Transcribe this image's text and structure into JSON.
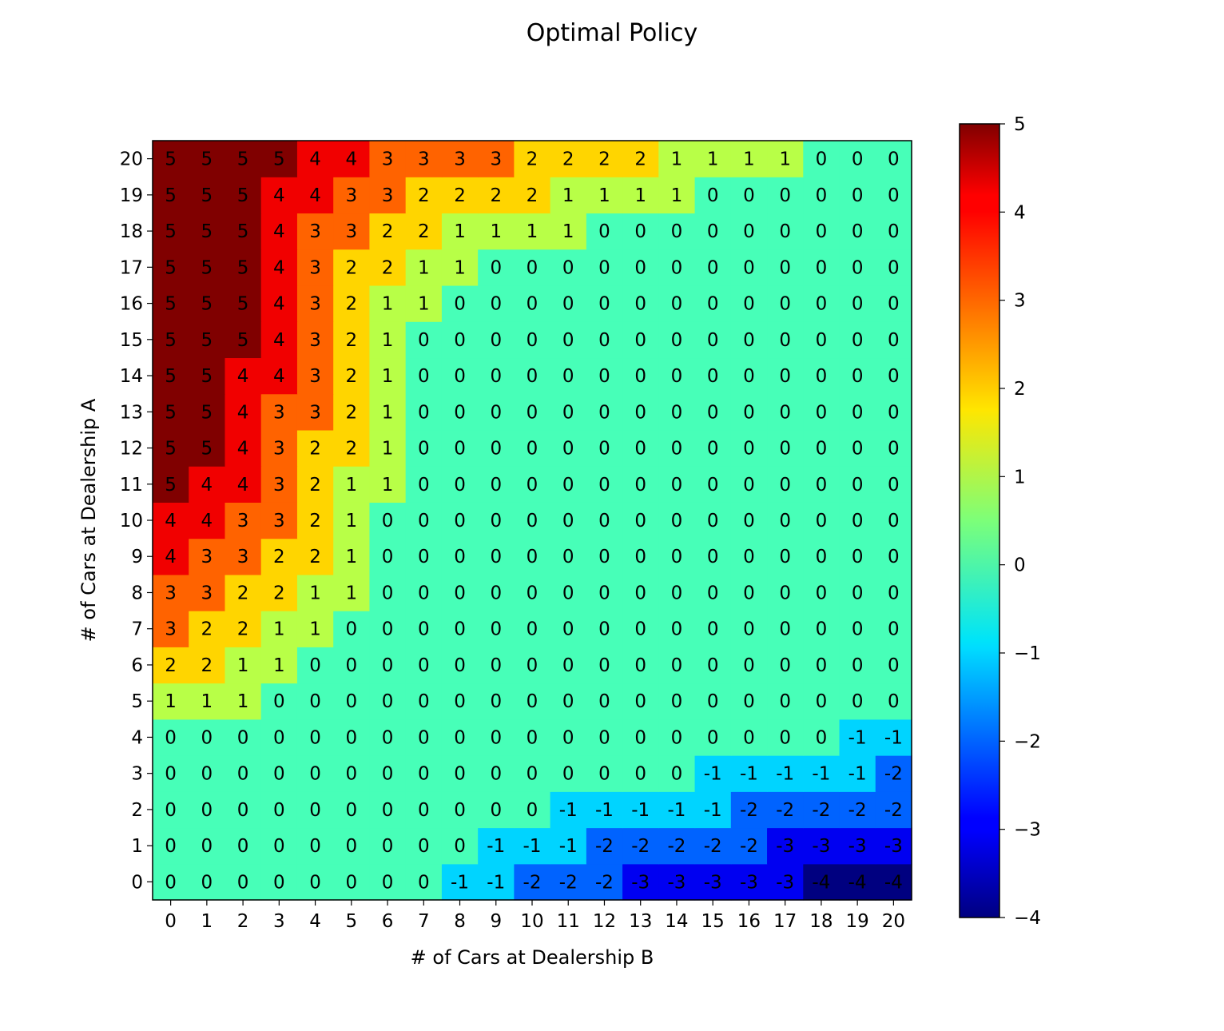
{
  "chart_data": {
    "type": "heatmap",
    "title": "Optimal Policy",
    "xlabel": "# of Cars at Dealership B",
    "ylabel": "# of Cars at Dealership A",
    "x_ticks": [
      "0",
      "1",
      "2",
      "3",
      "4",
      "5",
      "6",
      "7",
      "8",
      "9",
      "10",
      "11",
      "12",
      "13",
      "14",
      "15",
      "16",
      "17",
      "18",
      "19",
      "20"
    ],
    "y_ticks": [
      "0",
      "1",
      "2",
      "3",
      "4",
      "5",
      "6",
      "7",
      "8",
      "9",
      "10",
      "11",
      "12",
      "13",
      "14",
      "15",
      "16",
      "17",
      "18",
      "19",
      "20"
    ],
    "y_order": "ascending-bottom-to-top",
    "colormap": "jet",
    "vmin": -4,
    "vmax": 5,
    "colorbar_ticks": [
      "5",
      "4",
      "3",
      "2",
      "1",
      "0",
      "−1",
      "−2",
      "−3",
      "−4"
    ],
    "colorbar_tick_values": [
      5,
      4,
      3,
      2,
      1,
      0,
      -1,
      -2,
      -3,
      -4
    ],
    "grid": false,
    "values": [
      [
        0,
        0,
        0,
        0,
        0,
        0,
        0,
        0,
        -1,
        -1,
        -2,
        -2,
        -2,
        -3,
        -3,
        -3,
        -3,
        -3,
        -4,
        -4,
        -4
      ],
      [
        0,
        0,
        0,
        0,
        0,
        0,
        0,
        0,
        0,
        -1,
        -1,
        -1,
        -2,
        -2,
        -2,
        -2,
        -2,
        -3,
        -3,
        -3,
        -3
      ],
      [
        0,
        0,
        0,
        0,
        0,
        0,
        0,
        0,
        0,
        0,
        0,
        -1,
        -1,
        -1,
        -1,
        -1,
        -2,
        -2,
        -2,
        -2,
        -2
      ],
      [
        0,
        0,
        0,
        0,
        0,
        0,
        0,
        0,
        0,
        0,
        0,
        0,
        0,
        0,
        0,
        -1,
        -1,
        -1,
        -1,
        -1,
        -2
      ],
      [
        0,
        0,
        0,
        0,
        0,
        0,
        0,
        0,
        0,
        0,
        0,
        0,
        0,
        0,
        0,
        0,
        0,
        0,
        0,
        -1,
        -1
      ],
      [
        1,
        1,
        1,
        0,
        0,
        0,
        0,
        0,
        0,
        0,
        0,
        0,
        0,
        0,
        0,
        0,
        0,
        0,
        0,
        0,
        0
      ],
      [
        2,
        2,
        1,
        1,
        0,
        0,
        0,
        0,
        0,
        0,
        0,
        0,
        0,
        0,
        0,
        0,
        0,
        0,
        0,
        0,
        0
      ],
      [
        3,
        2,
        2,
        1,
        1,
        0,
        0,
        0,
        0,
        0,
        0,
        0,
        0,
        0,
        0,
        0,
        0,
        0,
        0,
        0,
        0
      ],
      [
        3,
        3,
        2,
        2,
        1,
        1,
        0,
        0,
        0,
        0,
        0,
        0,
        0,
        0,
        0,
        0,
        0,
        0,
        0,
        0,
        0
      ],
      [
        4,
        3,
        3,
        2,
        2,
        1,
        0,
        0,
        0,
        0,
        0,
        0,
        0,
        0,
        0,
        0,
        0,
        0,
        0,
        0,
        0
      ],
      [
        4,
        4,
        3,
        3,
        2,
        1,
        0,
        0,
        0,
        0,
        0,
        0,
        0,
        0,
        0,
        0,
        0,
        0,
        0,
        0,
        0
      ],
      [
        5,
        4,
        4,
        3,
        2,
        1,
        1,
        0,
        0,
        0,
        0,
        0,
        0,
        0,
        0,
        0,
        0,
        0,
        0,
        0,
        0
      ],
      [
        5,
        5,
        4,
        3,
        2,
        2,
        1,
        0,
        0,
        0,
        0,
        0,
        0,
        0,
        0,
        0,
        0,
        0,
        0,
        0,
        0
      ],
      [
        5,
        5,
        4,
        3,
        3,
        2,
        1,
        0,
        0,
        0,
        0,
        0,
        0,
        0,
        0,
        0,
        0,
        0,
        0,
        0,
        0
      ],
      [
        5,
        5,
        4,
        4,
        3,
        2,
        1,
        0,
        0,
        0,
        0,
        0,
        0,
        0,
        0,
        0,
        0,
        0,
        0,
        0,
        0
      ],
      [
        5,
        5,
        5,
        4,
        3,
        2,
        1,
        0,
        0,
        0,
        0,
        0,
        0,
        0,
        0,
        0,
        0,
        0,
        0,
        0,
        0
      ],
      [
        5,
        5,
        5,
        4,
        3,
        2,
        1,
        1,
        0,
        0,
        0,
        0,
        0,
        0,
        0,
        0,
        0,
        0,
        0,
        0,
        0
      ],
      [
        5,
        5,
        5,
        4,
        3,
        2,
        2,
        1,
        1,
        0,
        0,
        0,
        0,
        0,
        0,
        0,
        0,
        0,
        0,
        0,
        0
      ],
      [
        5,
        5,
        5,
        4,
        3,
        3,
        2,
        2,
        1,
        1,
        1,
        1,
        0,
        0,
        0,
        0,
        0,
        0,
        0,
        0,
        0
      ],
      [
        5,
        5,
        5,
        4,
        4,
        3,
        3,
        2,
        2,
        2,
        2,
        1,
        1,
        1,
        1,
        0,
        0,
        0,
        0,
        0,
        0
      ],
      [
        5,
        5,
        5,
        5,
        4,
        4,
        3,
        3,
        3,
        3,
        2,
        2,
        2,
        2,
        1,
        1,
        1,
        1,
        0,
        0,
        0
      ]
    ]
  }
}
